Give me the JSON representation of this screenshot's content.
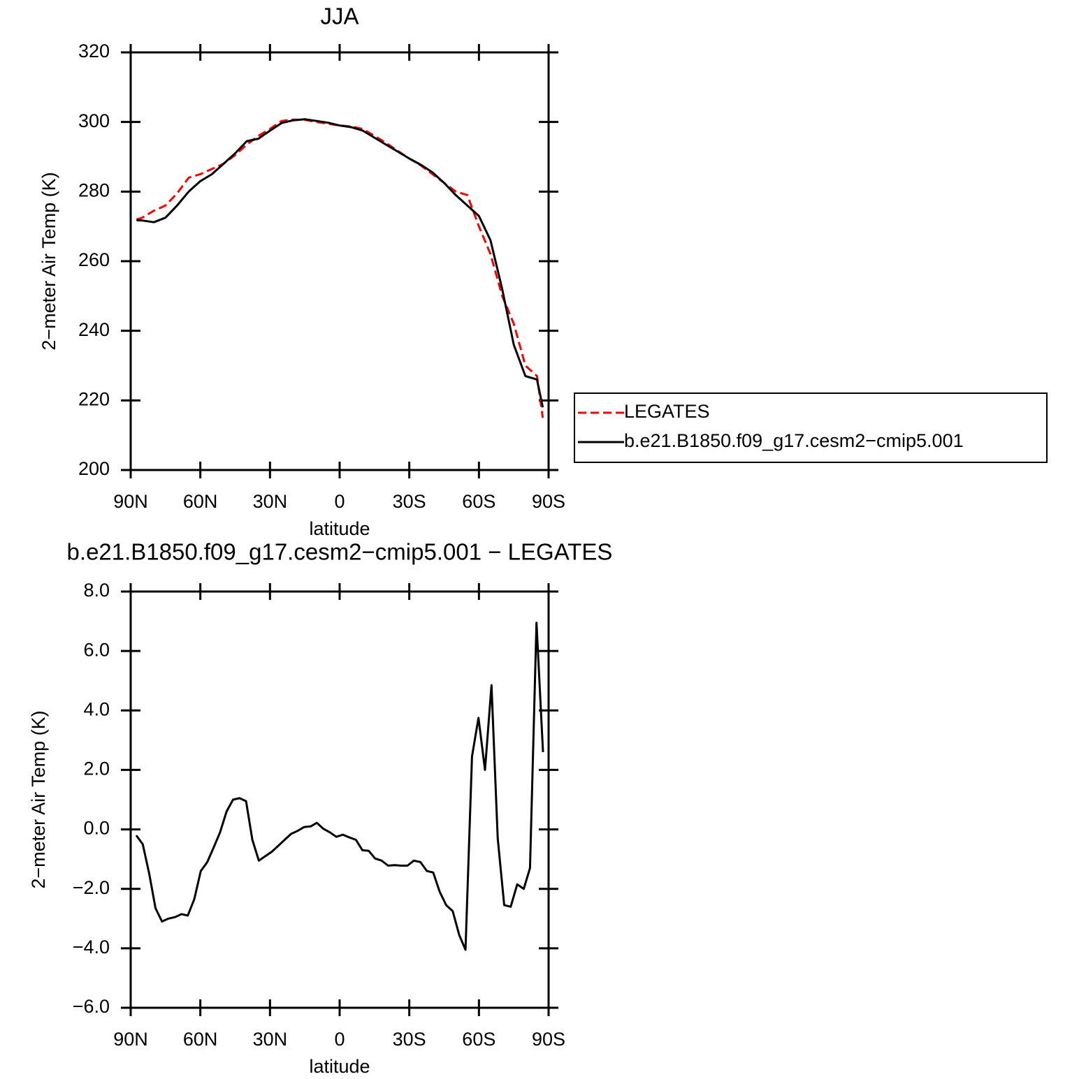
{
  "chart_data": [
    {
      "type": "line",
      "title": "JJA",
      "xlabel": "latitude",
      "ylabel": "2−meter Air Temp (K)",
      "x": [
        87.5,
        85,
        80,
        75,
        70,
        65,
        60,
        55,
        50,
        45,
        40,
        35,
        30,
        25,
        20,
        15,
        10,
        5,
        0,
        -5,
        -10,
        -15,
        -20,
        -25,
        -30,
        -35,
        -40,
        -45,
        -50,
        -55,
        -60,
        -65,
        -70,
        -75,
        -80,
        -85,
        -87.5
      ],
      "series": [
        {
          "name": "LEGATES",
          "color": "#ff0000",
          "linestyle": "dashed",
          "values": [
            272,
            272.5,
            274.5,
            276,
            279.5,
            284,
            285,
            286.5,
            288,
            290.5,
            293.5,
            296,
            298,
            300.3,
            300.7,
            300.6,
            300,
            299.5,
            299,
            298.7,
            298,
            296,
            294,
            291.7,
            289.5,
            287.5,
            285,
            282.5,
            280,
            279,
            270,
            262,
            250,
            242,
            230,
            227,
            215
          ]
        },
        {
          "name": "b.e21.B1850.f09_g17.cesm2−cmip5.001",
          "color": "#000000",
          "linestyle": "solid",
          "values": [
            271.8,
            271.7,
            271.2,
            272.5,
            276,
            280,
            283,
            285,
            288,
            291,
            294.5,
            295.2,
            297.5,
            299.7,
            300.5,
            300.8,
            300.3,
            299.8,
            299,
            298.5,
            297.5,
            295.5,
            293.5,
            291.5,
            289.5,
            287.7,
            285.5,
            282.5,
            279,
            276,
            273,
            266,
            252,
            236,
            227,
            226,
            218
          ]
        }
      ],
      "xlim": [
        90,
        -90
      ],
      "xticks": [
        {
          "value": 90,
          "label": "90N"
        },
        {
          "value": 60,
          "label": "60N"
        },
        {
          "value": 30,
          "label": "30N"
        },
        0,
        {
          "value": -30,
          "label": "30S"
        },
        {
          "value": -60,
          "label": "60S"
        },
        {
          "value": -90,
          "label": "90S"
        }
      ],
      "ylim": [
        200,
        320
      ],
      "yticks": [
        200,
        220,
        240,
        260,
        280,
        300,
        320
      ],
      "legend": "right"
    },
    {
      "type": "line",
      "title": "b.e21.B1850.f09_g17.cesm2−cmip5.001 − LEGATES",
      "xlabel": "latitude",
      "ylabel": "2−meter Air Temp (K)",
      "x": [
        87.6,
        84.8,
        82.0,
        79.3,
        76.5,
        73.7,
        70.9,
        68.1,
        65.4,
        62.6,
        59.8,
        57.0,
        54.2,
        51.5,
        48.7,
        45.9,
        43.1,
        40.3,
        37.6,
        34.8,
        32.0,
        29.2,
        26.4,
        23.7,
        20.9,
        18.1,
        15.3,
        12.5,
        9.8,
        7.0,
        4.2,
        1.4,
        -1.4,
        -4.2,
        -7.0,
        -9.8,
        -12.5,
        -15.3,
        -18.1,
        -20.9,
        -23.7,
        -26.4,
        -29.2,
        -32.0,
        -34.8,
        -37.6,
        -40.3,
        -43.1,
        -45.9,
        -48.7,
        -51.5,
        -54.2,
        -57.0,
        -59.8,
        -62.6,
        -65.4,
        -68.1,
        -70.9,
        -73.7,
        -76.5,
        -79.3,
        -82.0,
        -84.8,
        -87.6
      ],
      "series": [
        {
          "color": "#000000",
          "values": [
            -0.2,
            -0.5,
            -1.5,
            -2.65,
            -3.1,
            -3.0,
            -2.95,
            -2.85,
            -2.9,
            -2.35,
            -1.4,
            -1.1,
            -0.6,
            -0.1,
            0.6,
            1.0,
            1.05,
            0.95,
            -0.35,
            -1.05,
            -0.9,
            -0.75,
            -0.55,
            -0.35,
            -0.15,
            -0.05,
            0.08,
            0.1,
            0.22,
            0.02,
            -0.1,
            -0.25,
            -0.18,
            -0.27,
            -0.35,
            -0.7,
            -0.72,
            -0.98,
            -1.05,
            -1.22,
            -1.2,
            -1.22,
            -1.22,
            -1.05,
            -1.1,
            -1.4,
            -1.45,
            -2.1,
            -2.55,
            -2.75,
            -3.55,
            -4.05,
            2.45,
            3.75,
            2.0,
            4.85,
            -0.3,
            -2.55,
            -2.6,
            -1.85,
            -2.0,
            -1.3,
            6.95,
            2.6
          ]
        }
      ],
      "xlim": [
        90,
        -90
      ],
      "xticks": [
        {
          "value": 90,
          "label": "90N"
        },
        {
          "value": 60,
          "label": "60N"
        },
        {
          "value": 30,
          "label": "30N"
        },
        0,
        {
          "value": -30,
          "label": "30S"
        },
        {
          "value": -60,
          "label": "60S"
        },
        {
          "value": -90,
          "label": "90S"
        }
      ],
      "ylim": [
        -6,
        8
      ],
      "yticks": [
        {
          "value": -6,
          "label": "−6.0"
        },
        {
          "value": -4,
          "label": "−4.0"
        },
        {
          "value": -2,
          "label": "−2.0"
        },
        {
          "value": 0,
          "label": "0.0"
        },
        {
          "value": 2,
          "label": "2.0"
        },
        {
          "value": 4,
          "label": "4.0"
        },
        {
          "value": 6,
          "label": "6.0"
        },
        {
          "value": 8,
          "label": "8.0"
        }
      ]
    }
  ]
}
